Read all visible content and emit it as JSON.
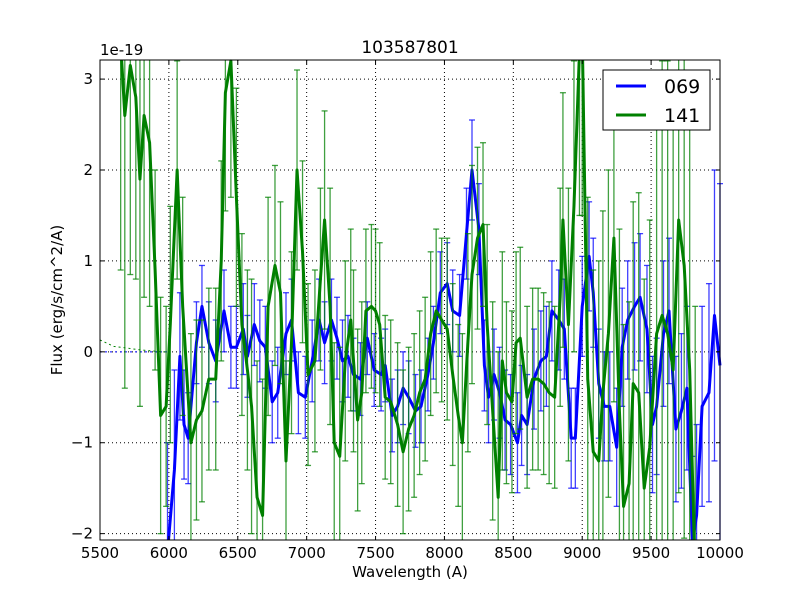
{
  "chart_data": {
    "type": "line",
    "title": "103587801",
    "xlabel": "Wavelength (A)",
    "ylabel": "Flux (erg/s/cm^2/A)",
    "y_offset_label": "1e-19",
    "xlim": [
      5500,
      10000
    ],
    "ylim": [
      -2.07,
      3.21
    ],
    "xticks": [
      5500,
      6000,
      6500,
      7000,
      7500,
      8000,
      8500,
      9000,
      9500,
      10000
    ],
    "yticks": [
      -2,
      -1,
      0,
      1,
      2,
      3
    ],
    "grid": true,
    "legend_position": "top-right",
    "series": [
      {
        "name": "069",
        "color": "#0000ff",
        "x": [
          5990,
          6040,
          6080,
          6110,
          6140,
          6200,
          6240,
          6290,
          6340,
          6400,
          6450,
          6490,
          6540,
          6570,
          6620,
          6660,
          6700,
          6750,
          6790,
          6850,
          6890,
          6940,
          6990,
          7040,
          7090,
          7130,
          7180,
          7220,
          7260,
          7300,
          7340,
          7390,
          7440,
          7490,
          7540,
          7570,
          7620,
          7660,
          7700,
          7740,
          7790,
          7830,
          7880,
          7920,
          7970,
          8020,
          8060,
          8110,
          8160,
          8200,
          8250,
          8290,
          8320,
          8360,
          8400,
          8440,
          8480,
          8530,
          8560,
          8600,
          8650,
          8700,
          8740,
          8780,
          8830,
          8870,
          8920,
          8950,
          9000,
          9050,
          9080,
          9120,
          9160,
          9200,
          9250,
          9290,
          9330,
          9380,
          9420,
          9470,
          9510,
          9540,
          9590,
          9630,
          9680,
          9720,
          9760,
          9800,
          9830,
          9870,
          9920,
          9960,
          10000
        ],
        "y": [
          -2.2,
          -1.3,
          -0.05,
          -0.8,
          -0.95,
          0.1,
          0.5,
          0.1,
          -0.1,
          0.45,
          0.05,
          0.05,
          0.25,
          -0.05,
          0.3,
          0.12,
          0.05,
          -0.55,
          -0.45,
          0.2,
          0.35,
          -0.45,
          -0.5,
          -0.1,
          0.35,
          0.1,
          0.35,
          0.15,
          -0.1,
          -0.05,
          -0.25,
          -0.3,
          0.15,
          -0.2,
          -0.25,
          -0.15,
          -0.7,
          -0.6,
          -0.4,
          -0.5,
          -0.65,
          -0.6,
          -0.25,
          0.1,
          0.65,
          0.75,
          0.45,
          0.4,
          1.3,
          2.0,
          1.35,
          -0.15,
          -0.5,
          -0.25,
          -0.45,
          -0.75,
          -0.8,
          -1.0,
          -0.7,
          -0.8,
          -0.3,
          -0.1,
          -0.05,
          0.45,
          0.35,
          0.25,
          -0.95,
          -0.95,
          0.5,
          1.05,
          0.65,
          -0.35,
          -0.6,
          -0.6,
          -1.05,
          0.05,
          0.35,
          0.5,
          0.6,
          0.25,
          -0.8,
          -0.6,
          0.2,
          0.45,
          -0.85,
          -0.65,
          -0.4,
          -2.1,
          -1.8,
          -0.6,
          -0.45,
          0.4,
          -0.15
        ],
        "err": [
          1.2,
          1.1,
          0.7,
          0.6,
          0.5,
          0.45,
          0.45,
          0.45,
          0.45,
          0.45,
          0.45,
          0.45,
          0.5,
          0.45,
          0.45,
          0.45,
          0.45,
          0.45,
          0.5,
          0.45,
          0.45,
          0.45,
          0.45,
          0.45,
          0.45,
          0.45,
          0.45,
          0.45,
          0.45,
          0.45,
          0.4,
          0.4,
          0.4,
          0.4,
          0.4,
          0.4,
          0.4,
          0.4,
          0.4,
          0.4,
          0.4,
          0.4,
          0.4,
          0.4,
          0.45,
          0.45,
          0.45,
          0.45,
          0.5,
          0.55,
          0.5,
          0.5,
          0.5,
          0.5,
          0.5,
          0.55,
          0.55,
          0.55,
          0.55,
          0.55,
          0.55,
          0.55,
          0.55,
          0.55,
          0.55,
          0.55,
          0.55,
          0.55,
          0.55,
          0.6,
          0.6,
          0.6,
          0.6,
          0.6,
          0.65,
          0.65,
          0.65,
          0.7,
          0.7,
          0.7,
          0.75,
          0.75,
          0.8,
          0.8,
          0.8,
          0.85,
          0.9,
          0.95,
          1.0,
          1.1,
          1.2,
          1.6,
          2.0
        ]
      },
      {
        "name": "141",
        "color": "#008000",
        "x": [
          5650,
          5680,
          5720,
          5760,
          5790,
          5820,
          5860,
          5900,
          5940,
          5980,
          6010,
          6060,
          6100,
          6160,
          6200,
          6240,
          6290,
          6340,
          6380,
          6410,
          6450,
          6490,
          6530,
          6570,
          6600,
          6640,
          6680,
          6720,
          6770,
          6810,
          6850,
          6890,
          6930,
          6970,
          7010,
          7060,
          7100,
          7130,
          7170,
          7200,
          7240,
          7280,
          7320,
          7340,
          7370,
          7400,
          7430,
          7470,
          7500,
          7530,
          7570,
          7610,
          7660,
          7700,
          7740,
          7780,
          7820,
          7860,
          7900,
          7940,
          7980,
          8020,
          8060,
          8100,
          8130,
          8170,
          8200,
          8240,
          8280,
          8310,
          8350,
          8390,
          8420,
          8450,
          8490,
          8520,
          8550,
          8600,
          8640,
          8680,
          8720,
          8760,
          8800,
          8840,
          8860,
          8900,
          8940,
          8980,
          9000,
          9040,
          9080,
          9120,
          9150,
          9190,
          9230,
          9270,
          9300,
          9340,
          9370,
          9410,
          9450,
          9490,
          9540,
          9580,
          9620,
          9660,
          9700,
          9740,
          9780,
          9820
        ],
        "y": [
          3.4,
          2.6,
          3.15,
          2.8,
          1.9,
          2.6,
          2.3,
          0.9,
          -0.7,
          -0.6,
          0.3,
          2.0,
          0.5,
          -1.0,
          -0.75,
          -0.65,
          -0.3,
          -0.3,
          1.0,
          2.85,
          3.2,
          1.7,
          0.3,
          -0.2,
          -0.6,
          -1.6,
          -1.8,
          0.5,
          0.95,
          0.65,
          -1.2,
          0.1,
          2.0,
          1.1,
          -0.25,
          -0.1,
          0.8,
          1.45,
          0.5,
          -1.0,
          -1.15,
          -0.1,
          0.35,
          -0.1,
          -0.75,
          -0.45,
          0.45,
          0.5,
          0.45,
          0.3,
          -0.5,
          -0.55,
          -0.8,
          -1.1,
          -0.85,
          -0.7,
          -0.45,
          -0.3,
          0.2,
          0.45,
          0.35,
          0.25,
          -0.25,
          -0.7,
          -1.0,
          0.1,
          0.85,
          1.25,
          1.4,
          0.3,
          -0.65,
          -1.6,
          -0.1,
          -0.45,
          -0.55,
          0.1,
          0.15,
          -0.5,
          -0.3,
          -0.3,
          -0.35,
          -0.45,
          -0.5,
          0.6,
          1.45,
          0.3,
          1.6,
          3.3,
          3.5,
          -0.3,
          -1.1,
          -1.2,
          -0.45,
          0.2,
          1.25,
          -0.65,
          -1.7,
          -1.45,
          -0.35,
          -0.45,
          -1.5,
          -1.05,
          0.2,
          0.4,
          0.2,
          -0.2,
          1.45,
          0.95,
          -0.2,
          -2.5
        ],
        "err": [
          2.5,
          3.0,
          2.3,
          2.0,
          2.5,
          2.0,
          1.8,
          1.1,
          1.3,
          1.1,
          1.3,
          1.2,
          1.2,
          1.2,
          1.1,
          1.0,
          1.0,
          1.0,
          1.1,
          1.3,
          1.5,
          1.2,
          1.0,
          1.1,
          1.4,
          1.5,
          1.5,
          1.2,
          1.1,
          1.0,
          1.1,
          1.0,
          1.1,
          1.0,
          1.0,
          1.0,
          1.0,
          1.2,
          1.3,
          1.1,
          1.2,
          1.1,
          1.0,
          1.0,
          1.0,
          1.0,
          0.9,
          0.9,
          0.9,
          0.9,
          0.9,
          0.9,
          0.9,
          0.9,
          0.9,
          0.9,
          0.9,
          0.9,
          0.9,
          0.9,
          0.9,
          1.0,
          1.0,
          1.0,
          1.2,
          1.2,
          1.2,
          1.0,
          0.9,
          1.1,
          1.2,
          1.6,
          1.2,
          1.0,
          1.0,
          1.0,
          1.0,
          1.0,
          1.0,
          1.0,
          1.0,
          1.0,
          1.0,
          1.2,
          1.4,
          1.5,
          1.6,
          1.8,
          2.0,
          2.0,
          2.0,
          2.2,
          2.0,
          1.8,
          1.8,
          2.0,
          2.0,
          2.0,
          2.0,
          2.2,
          2.3,
          2.5,
          2.7,
          2.8,
          3.0,
          3.0,
          3.0,
          3.0,
          3.0,
          3.0
        ]
      }
    ],
    "baselines": [
      {
        "name": "069-zero",
        "color": "#0000ff",
        "x": [
          5500,
          6000
        ],
        "y": [
          0,
          0
        ]
      },
      {
        "name": "141-zero",
        "color": "#008000",
        "x": [
          5500,
          5600,
          5800,
          5950,
          6000
        ],
        "y": [
          0.13,
          0.06,
          0.02,
          0.0,
          0.0
        ]
      }
    ]
  }
}
